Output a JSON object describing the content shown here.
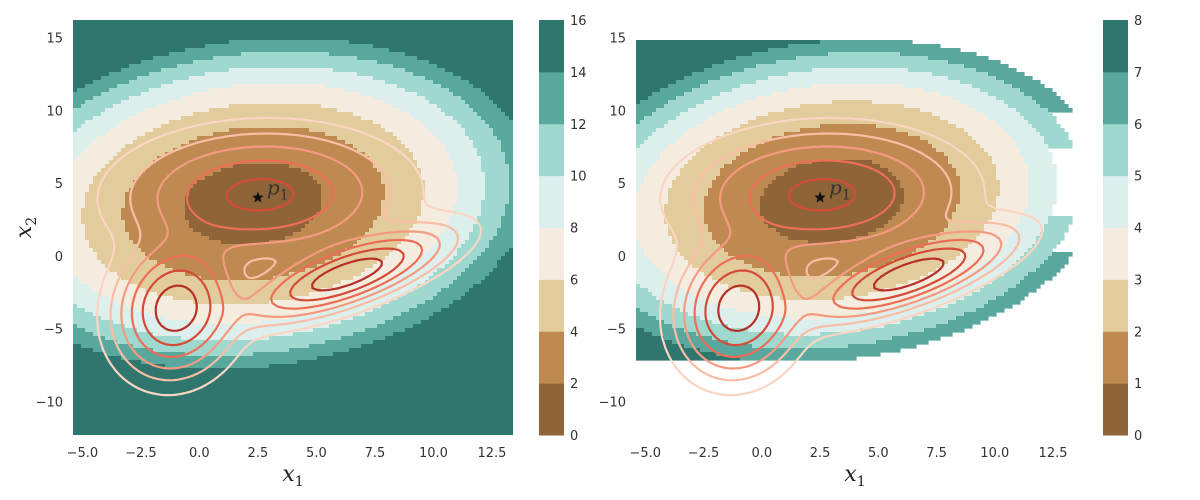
{
  "chart_data": [
    {
      "type": "contour",
      "xlabel": "x",
      "xlabel_sub": "1",
      "ylabel": "x",
      "ylabel_sub": "2",
      "xlim": [
        -5.4,
        13.4
      ],
      "ylim": [
        -12.3,
        16.2
      ],
      "xticks": [
        -5.0,
        -2.5,
        0.0,
        2.5,
        5.0,
        7.5,
        10.0,
        12.5
      ],
      "xtick_labels": [
        "−5.0",
        "−2.5",
        "0.0",
        "2.5",
        "5.0",
        "7.5",
        "10.0",
        "12.5"
      ],
      "yticks": [
        -10,
        -5,
        0,
        5,
        10,
        15
      ],
      "ytick_labels": [
        "−10",
        "−5",
        "0",
        "5",
        "10",
        "15"
      ],
      "colorbar": {
        "levels": [
          0,
          2,
          4,
          6,
          8,
          10,
          12,
          14,
          16
        ],
        "labels": [
          "0",
          "2",
          "4",
          "6",
          "8",
          "10",
          "12",
          "14",
          "16"
        ],
        "colors": [
          "#8f6438",
          "#bf8a51",
          "#e3cc9b",
          "#f5ece0",
          "#dcefed",
          "#9ed8cf",
          "#58a89e",
          "#2e766e"
        ]
      },
      "point": {
        "x": 2.5,
        "y": 4.0,
        "label": "p",
        "label_sub": "1"
      },
      "density_contour_colors": [
        "#fbd5c3",
        "#f7a98e",
        "#ef6e55",
        "#c8342a"
      ]
    },
    {
      "type": "contour",
      "xlabel": "x",
      "xlabel_sub": "1",
      "ylabel": "",
      "ylabel_sub": "",
      "xlim": [
        -5.4,
        13.4
      ],
      "ylim": [
        -12.3,
        16.2
      ],
      "xticks": [
        -5.0,
        -2.5,
        0.0,
        2.5,
        5.0,
        7.5,
        10.0,
        12.5
      ],
      "xtick_labels": [
        "−5.0",
        "−2.5",
        "0.0",
        "2.5",
        "5.0",
        "7.5",
        "10.0",
        "12.5"
      ],
      "yticks": [
        -10,
        -5,
        0,
        5,
        10,
        15
      ],
      "ytick_labels": [
        "−10",
        "−5",
        "0",
        "5",
        "10",
        "15"
      ],
      "colorbar": {
        "levels": [
          0,
          1,
          2,
          3,
          4,
          5,
          6,
          7,
          8
        ],
        "labels": [
          "0",
          "1",
          "2",
          "3",
          "4",
          "5",
          "6",
          "7",
          "8"
        ],
        "colors": [
          "#8f6438",
          "#bf8a51",
          "#e3cc9b",
          "#f5ece0",
          "#dcefed",
          "#9ed8cf",
          "#58a89e",
          "#2e766e"
        ]
      },
      "point": {
        "x": 2.5,
        "y": 4.0,
        "label": "p",
        "label_sub": "1"
      },
      "density_contour_colors": [
        "#fbd5c3",
        "#f7a98e",
        "#ef6e55",
        "#c8342a"
      ]
    }
  ]
}
